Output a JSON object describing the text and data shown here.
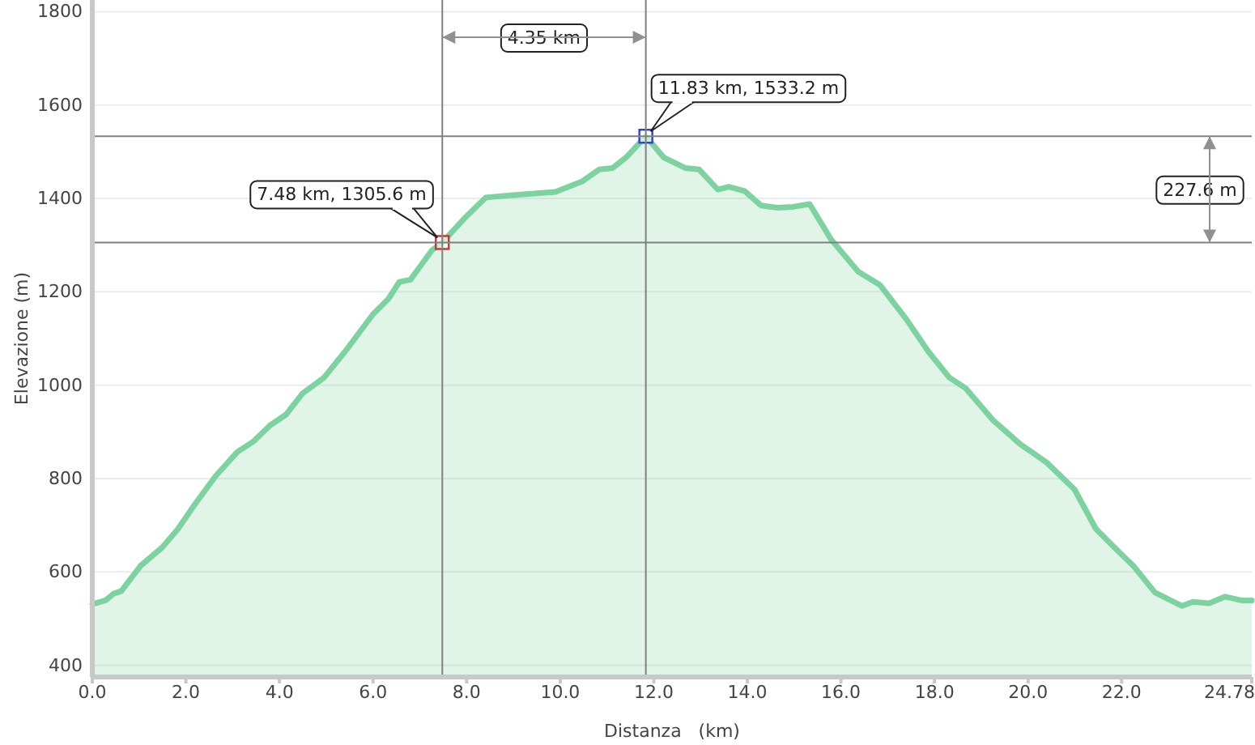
{
  "chart_data": {
    "type": "area",
    "xlabel": "Distanza   (km)",
    "ylabel": "Elevazione (m)",
    "xlim": [
      0,
      24.78
    ],
    "ylim": [
      375,
      1825
    ],
    "xticks": [
      {
        "value": 0,
        "label": "0.0"
      },
      {
        "value": 2,
        "label": "2.0"
      },
      {
        "value": 4,
        "label": "4.0"
      },
      {
        "value": 6,
        "label": "6.0"
      },
      {
        "value": 8,
        "label": "8.0"
      },
      {
        "value": 10,
        "label": "10.0"
      },
      {
        "value": 12,
        "label": "12.0"
      },
      {
        "value": 14,
        "label": "14.0"
      },
      {
        "value": 16,
        "label": "16.0"
      },
      {
        "value": 18,
        "label": "18.0"
      },
      {
        "value": 20,
        "label": "20.0"
      },
      {
        "value": 22,
        "label": "22.0"
      },
      24.78
    ],
    "yticks": [
      400,
      600,
      800,
      1000,
      1200,
      1400,
      1600,
      1800
    ],
    "grid": "y",
    "series": [
      {
        "color": "#7dd3a0",
        "x": [
          0,
          0.28,
          0.45,
          0.62,
          1.03,
          1.49,
          1.83,
          2.18,
          2.64,
          3.1,
          3.45,
          3.8,
          4.14,
          4.49,
          4.95,
          5.41,
          6.0,
          6.33,
          6.56,
          6.8,
          7.26,
          7.48,
          7.95,
          8.41,
          9.1,
          9.9,
          10.48,
          10.83,
          11.12,
          11.41,
          11.83,
          12.21,
          12.68,
          12.97,
          13.37,
          13.6,
          13.94,
          14.29,
          14.64,
          14.98,
          15.33,
          15.79,
          16.37,
          16.83,
          17.4,
          17.86,
          18.32,
          18.67,
          19.25,
          19.83,
          20.4,
          20.99,
          21.45,
          21.9,
          22.25,
          22.71,
          23.29,
          23.52,
          23.87,
          24.21,
          24.56,
          24.78
        ],
        "values": [
          531,
          539,
          553,
          559,
          613,
          652,
          692,
          743,
          806,
          857,
          880,
          914,
          937,
          982,
          1016,
          1073,
          1152,
          1185,
          1221,
          1226,
          1289,
          1305.6,
          1357,
          1402,
          1408,
          1414,
          1437,
          1462,
          1465,
          1488,
          1533.2,
          1488,
          1465,
          1462,
          1419,
          1425,
          1416,
          1385,
          1380,
          1382,
          1388,
          1312,
          1243,
          1215,
          1141,
          1073,
          1016,
          993,
          925,
          874,
          834,
          777,
          692,
          647,
          613,
          556,
          527,
          536,
          533,
          547,
          539,
          539
        ]
      },
      {
        "type": "scatter",
        "marker": "square",
        "color": "#d03030",
        "x": [
          7.48
        ],
        "values": [
          1305.6
        ]
      },
      {
        "type": "scatter",
        "marker": "square",
        "color": "#3040d0",
        "x": [
          11.83
        ],
        "values": [
          1533.2
        ]
      }
    ],
    "ref_lines": [
      {
        "axis": "x",
        "value": 7.48,
        "color": "#808080"
      },
      {
        "axis": "x",
        "value": 11.83,
        "color": "#808080"
      },
      {
        "axis": "y",
        "value": 1305.6,
        "color": "#808080"
      },
      {
        "axis": "y",
        "value": 1533.2,
        "color": "#808080"
      }
    ],
    "annotations": [
      {
        "text": "7.48 km, 1305.6 m",
        "x": 7.48,
        "y": 1305.6
      },
      {
        "text": "11.83 km, 1533.2 m",
        "x": 11.83,
        "y": 1533.2
      },
      "4.35 km",
      "227.6 m"
    ]
  }
}
